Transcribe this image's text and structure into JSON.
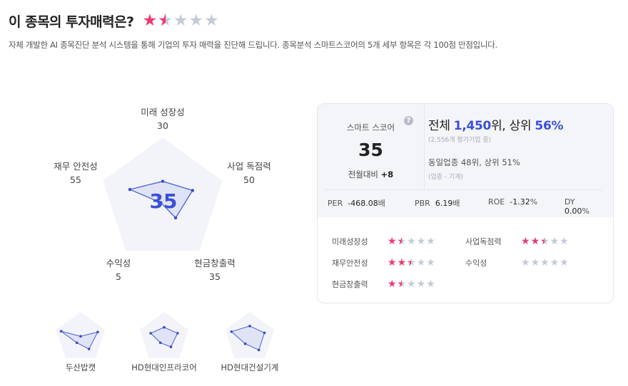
{
  "header": {
    "title": "이 종목의 투자매력은?",
    "rating": 1.5,
    "description": "자체 개발한 AI 종목진단 분석 시스템을 통해 기업의 투자 매력을 진단해 드립니다. 종목분석 스마트스코어의 5개 세부 항목은 각 100점 만점입니다."
  },
  "radar": {
    "score": "35",
    "axes": [
      {
        "label": "미래 성장성",
        "value": 30
      },
      {
        "label": "사업 독점력",
        "value": 50
      },
      {
        "label": "현금창출력",
        "value": 35
      },
      {
        "label": "수익성",
        "value": 5
      },
      {
        "label": "재무 안전성",
        "value": 55
      }
    ],
    "max": 100
  },
  "peers": [
    {
      "name": "두산밥캣",
      "values": [
        5,
        70,
        55,
        25,
        80
      ]
    },
    {
      "name": "HD현대인프라코어",
      "values": [
        40,
        55,
        45,
        25,
        55
      ]
    },
    {
      "name": "HD현대건설기계",
      "values": [
        45,
        60,
        60,
        30,
        75
      ]
    }
  ],
  "card": {
    "smart_score_label": "스마트 스코어",
    "help_icon": "?",
    "score": "35",
    "mom_label": "전월대비",
    "mom_value": "+8",
    "rank_prefix": "전체 ",
    "rank": "1,450",
    "rank_mid": "위, 상위 ",
    "rank_pct": "56%",
    "rank_sub": "(2,556개 평가기업 중)",
    "industry_rank": "동일업종 48위, 상위 51%",
    "industry_sub": "(업종 - 기계)",
    "metrics": [
      {
        "k": "PER",
        "v": "-468.08",
        "u": "배"
      },
      {
        "k": "PBR",
        "v": "6.19",
        "u": "배"
      },
      {
        "k": "ROE",
        "v": "-1.32",
        "u": "%"
      },
      {
        "k": "DY",
        "v": "0.00",
        "u": "%"
      }
    ],
    "ratings": [
      {
        "label": "미래성장성",
        "stars": 1.5
      },
      {
        "label": "사업독점력",
        "stars": 2.5
      },
      {
        "label": "재무안전성",
        "stars": 2.5
      },
      {
        "label": "수익성",
        "stars": 0
      },
      {
        "label": "현금창출력",
        "stars": 1.5
      }
    ]
  },
  "colors": {
    "accent": "#3a50d9",
    "star_on": "#f2386f",
    "star_off": "#c3cad8",
    "pentagon": "#f3f4f9"
  }
}
